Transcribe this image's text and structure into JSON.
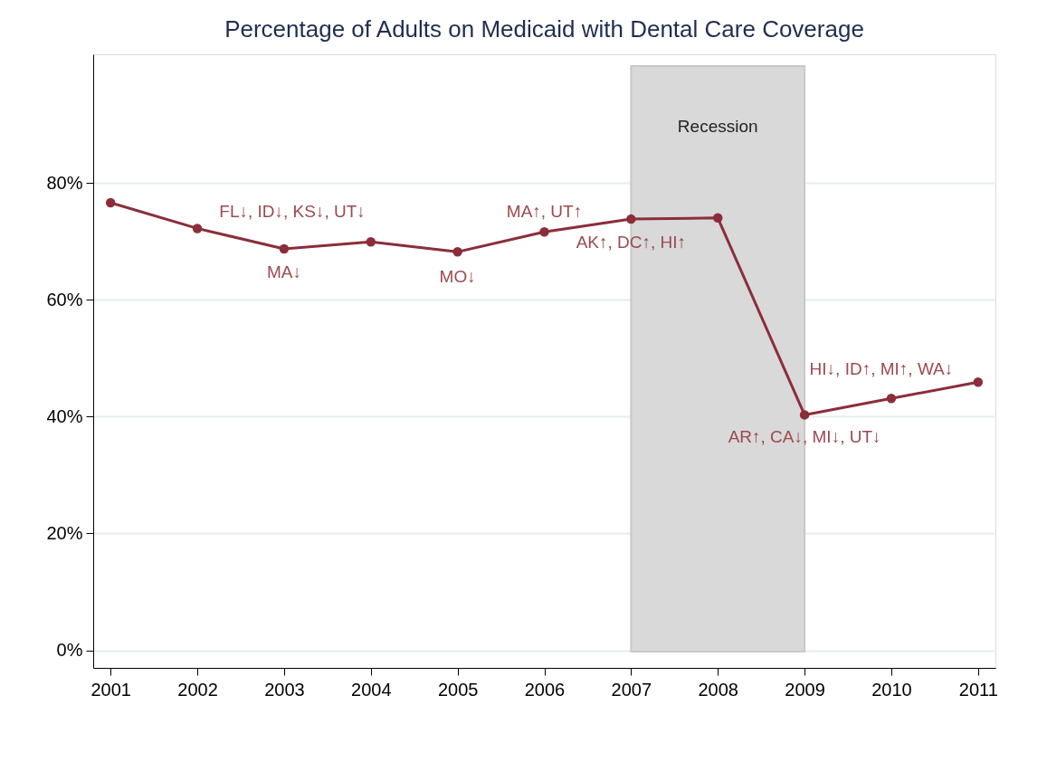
{
  "chart_data": {
    "type": "line",
    "title": "Percentage of Adults on Medicaid with Dental Care Coverage",
    "x": [
      2001,
      2002,
      2003,
      2004,
      2005,
      2006,
      2007,
      2008,
      2009,
      2010,
      2011
    ],
    "series": [
      {
        "color": "#8b2e3a",
        "values": [
          76.6,
          72.2,
          68.7,
          69.9,
          68.2,
          71.6,
          73.8,
          74.0,
          40.3,
          43.1,
          45.9
        ]
      }
    ],
    "xlim": [
      2000.8,
      2011.2
    ],
    "xticks": [
      2001,
      2002,
      2003,
      2004,
      2005,
      2006,
      2007,
      2008,
      2009,
      2010,
      2011
    ],
    "ylim": [
      -3,
      102
    ],
    "yticks": [
      {
        "value": 0,
        "label": "0%"
      },
      {
        "value": 20,
        "label": "20%"
      },
      {
        "value": 40,
        "label": "40%"
      },
      {
        "value": 60,
        "label": "60%"
      },
      {
        "value": 80,
        "label": "80%"
      }
    ],
    "grid": "y",
    "marker": "circle",
    "line_style": "solid",
    "bands": [
      {
        "axis": "x",
        "from": 2007,
        "to": 2009,
        "label": "Recession",
        "color": "#d9d9d9"
      }
    ],
    "annotations": [
      {
        "text": "FL↓, ID↓, KS↓, UT↓",
        "x": 2002,
        "y": 72.2
      },
      {
        "text": "MA↓",
        "x": 2003,
        "y": 68.7
      },
      {
        "text": "MO↓",
        "x": 2005,
        "y": 68.2
      },
      {
        "text": "MA↑, UT↑",
        "x": 2006,
        "y": 71.6
      },
      {
        "text": "AK↑, DC↑, HI↑",
        "x": 2007,
        "y": 73.8
      },
      {
        "text": "HI↓, ID↑, MI↑, WA↓",
        "x": 2010,
        "y": 43.1
      },
      {
        "text": "AR↑, CA↓, MI↓, UT↓",
        "x": 2009,
        "y": 40.3
      }
    ]
  }
}
